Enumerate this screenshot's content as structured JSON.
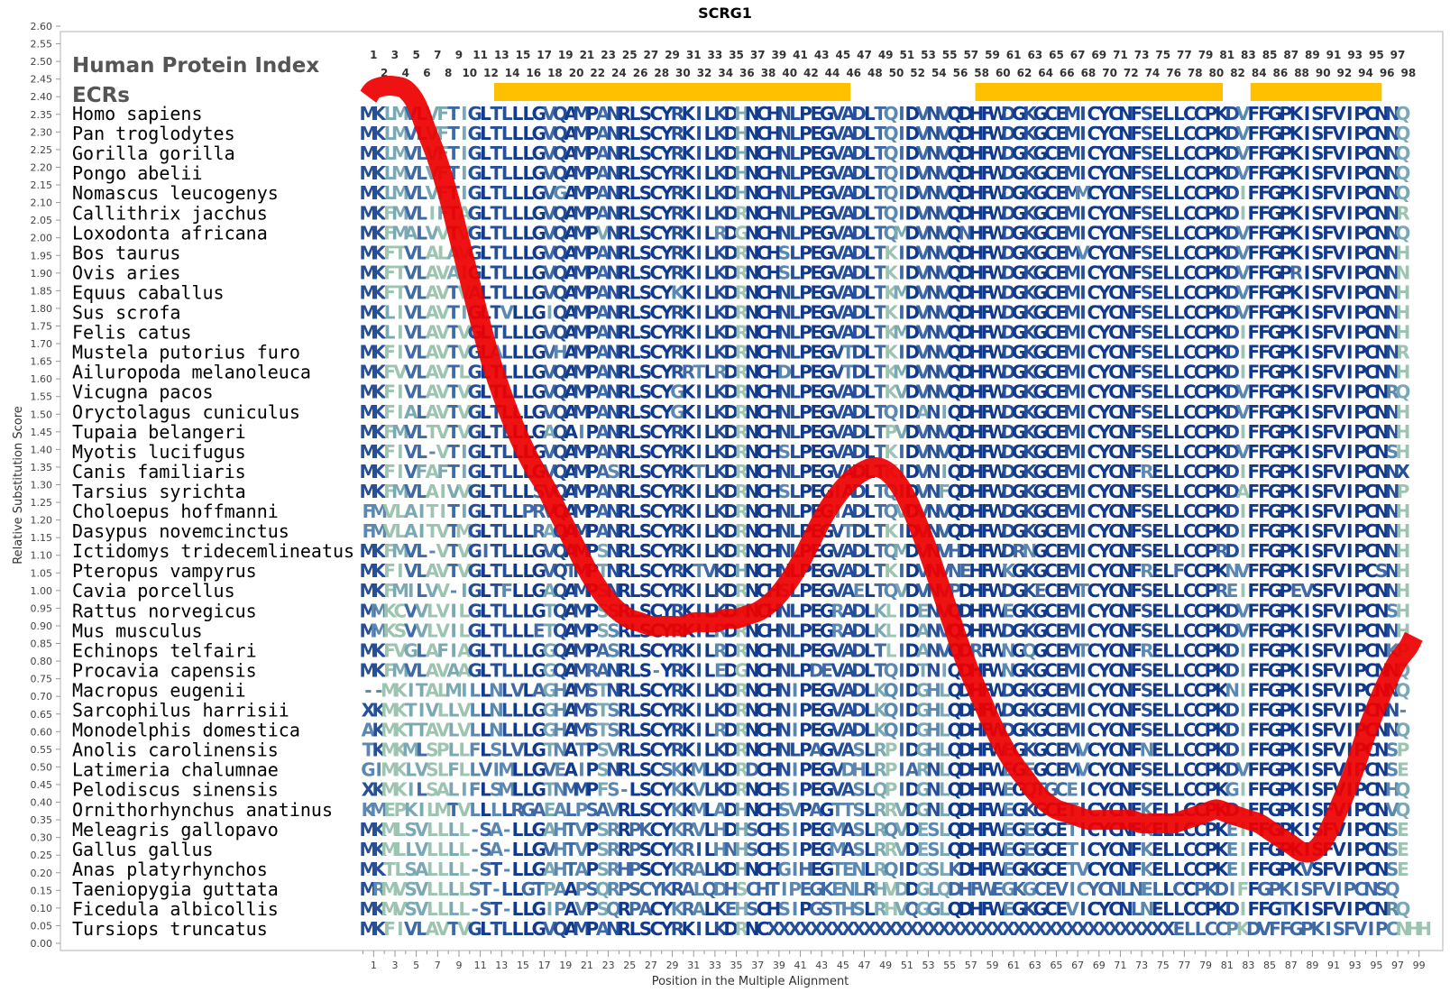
{
  "chart_data": {
    "type": "line",
    "title": "SCRG1",
    "xlabel": "Position in the Multiple Alignment",
    "ylabel": "Relative Substitution Score",
    "ylim": [
      0,
      2.6
    ],
    "xlim": [
      0,
      99
    ],
    "y_ticks": [
      "0.00",
      "0.05",
      "0.10",
      "0.15",
      "0.20",
      "0.25",
      "0.30",
      "0.35",
      "0.40",
      "0.45",
      "0.50",
      "0.55",
      "0.60",
      "0.65",
      "0.70",
      "0.75",
      "0.80",
      "0.85",
      "0.90",
      "0.95",
      "1.00",
      "1.05",
      "1.10",
      "1.15",
      "1.20",
      "1.25",
      "1.30",
      "1.35",
      "1.40",
      "1.45",
      "1.50",
      "1.55",
      "1.60",
      "1.65",
      "1.70",
      "1.75",
      "1.80",
      "1.85",
      "1.90",
      "1.95",
      "2.00",
      "2.05",
      "2.10",
      "2.15",
      "2.20",
      "2.25",
      "2.30",
      "2.35",
      "2.40",
      "2.45",
      "2.50",
      "2.55",
      "2.60"
    ],
    "x_ticks": [
      "1",
      "3",
      "5",
      "7",
      "9",
      "11",
      "13",
      "15",
      "17",
      "19",
      "21",
      "23",
      "25",
      "27",
      "29",
      "31",
      "33",
      "35",
      "37",
      "39",
      "41",
      "43",
      "45",
      "47",
      "49",
      "51",
      "53",
      "55",
      "57",
      "59",
      "61",
      "63",
      "65",
      "67",
      "69",
      "71",
      "73",
      "75",
      "77",
      "79",
      "81",
      "83",
      "85",
      "87",
      "89",
      "91",
      "93",
      "95",
      "97",
      "99"
    ],
    "top_ticks_odd": [
      "1",
      "3",
      "5",
      "7",
      "9",
      "11",
      "13",
      "15",
      "17",
      "19",
      "21",
      "23",
      "25",
      "27",
      "29",
      "31",
      "33",
      "35",
      "37",
      "39",
      "41",
      "43",
      "45",
      "47",
      "49",
      "51",
      "53",
      "55",
      "57",
      "59",
      "61",
      "63",
      "65",
      "67",
      "69",
      "71",
      "73",
      "75",
      "77",
      "79",
      "81",
      "83",
      "85",
      "87",
      "89",
      "91",
      "93",
      "95",
      "97"
    ],
    "top_ticks_even": [
      "2",
      "4",
      "6",
      "8",
      "10",
      "12",
      "14",
      "16",
      "18",
      "20",
      "22",
      "24",
      "26",
      "28",
      "30",
      "32",
      "34",
      "36",
      "38",
      "40",
      "42",
      "44",
      "46",
      "48",
      "50",
      "52",
      "54",
      "56",
      "58",
      "60",
      "62",
      "64",
      "66",
      "68",
      "70",
      "72",
      "74",
      "76",
      "78",
      "80",
      "82",
      "84",
      "86",
      "88",
      "90",
      "92",
      "94",
      "96",
      "98"
    ],
    "header_labels": [
      "Human Protein Index",
      "ECRs"
    ],
    "ecr_regions": [
      [
        12.3,
        45.7
      ],
      [
        57.4,
        80.6
      ],
      [
        83.2,
        95.5
      ]
    ],
    "series": [
      {
        "color": "#ee0000",
        "x": [
          0.5,
          1,
          2,
          3,
          4,
          5,
          6,
          7,
          8,
          9,
          10,
          11,
          12,
          13,
          14,
          15,
          16,
          17,
          18,
          19,
          20,
          21,
          22,
          23,
          24,
          25,
          26,
          27,
          28,
          29,
          30,
          31,
          32,
          33,
          34,
          35,
          36,
          37,
          38,
          39,
          40,
          41,
          42,
          43,
          44,
          45,
          46,
          47,
          48,
          49,
          50,
          51,
          52,
          53,
          54,
          55,
          56,
          57,
          58,
          59,
          60,
          61,
          62,
          63,
          64,
          65,
          66,
          67,
          68,
          69,
          70,
          71,
          72,
          73,
          74,
          75,
          76,
          77,
          78,
          79,
          80,
          81,
          82,
          83,
          84,
          85,
          86,
          87,
          88,
          89,
          90,
          91,
          92,
          93,
          94,
          95,
          96,
          97,
          98,
          98.5
        ],
        "y": [
          2.4,
          2.42,
          2.43,
          2.43,
          2.42,
          2.38,
          2.3,
          2.22,
          2.12,
          2.0,
          1.88,
          1.76,
          1.65,
          1.56,
          1.48,
          1.41,
          1.35,
          1.3,
          1.24,
          1.18,
          1.12,
          1.06,
          1.01,
          0.97,
          0.94,
          0.92,
          0.91,
          0.9,
          0.9,
          0.9,
          0.9,
          0.91,
          0.91,
          0.91,
          0.92,
          0.92,
          0.93,
          0.94,
          0.96,
          0.99,
          1.03,
          1.08,
          1.14,
          1.2,
          1.25,
          1.29,
          1.32,
          1.34,
          1.35,
          1.34,
          1.31,
          1.26,
          1.19,
          1.11,
          1.02,
          0.93,
          0.84,
          0.76,
          0.69,
          0.62,
          0.56,
          0.51,
          0.47,
          0.43,
          0.4,
          0.38,
          0.37,
          0.36,
          0.35,
          0.35,
          0.35,
          0.35,
          0.35,
          0.34,
          0.34,
          0.34,
          0.34,
          0.35,
          0.36,
          0.37,
          0.38,
          0.37,
          0.36,
          0.35,
          0.34,
          0.32,
          0.3,
          0.28,
          0.26,
          0.26,
          0.29,
          0.35,
          0.42,
          0.5,
          0.59,
          0.67,
          0.74,
          0.8,
          0.84,
          0.87
        ]
      }
    ],
    "species": [
      "Homo sapiens",
      "Pan troglodytes",
      "Gorilla gorilla",
      "Pongo abelii",
      "Nomascus leucogenys",
      "Callithrix jacchus",
      "Loxodonta africana",
      "Bos taurus",
      "Ovis aries",
      "Equus caballus",
      "Sus scrofa",
      "Felis catus",
      "Mustela putorius furo",
      "Ailuropoda melanoleuca",
      "Vicugna pacos",
      "Oryctolagus cuniculus",
      "Tupaia belangeri",
      "Myotis lucifugus",
      "Canis familiaris",
      "Tarsius syrichta",
      "Choloepus hoffmanni",
      "Dasypus novemcinctus",
      "Ictidomys tridecemlineatus",
      "Pteropus vampyrus",
      "Cavia porcellus",
      "Rattus norvegicus",
      "Mus musculus",
      "Echinops telfairi",
      "Procavia capensis",
      "Macropus eugenii",
      "Sarcophilus harrisii",
      "Monodelphis domestica",
      "Anolis carolinensis",
      "Latimeria chalumnae",
      "Pelodiscus sinensis",
      "Ornithorhynchus anatinus",
      "Meleagris gallopavo",
      "Gallus gallus",
      "Anas platyrhynchos",
      "Taeniopygia guttata",
      "Ficedula albicollis",
      "Tursiops truncatus"
    ],
    "sequences": [
      "MKLMVLVFTIGLTLLLGVQAMPANRLSCYRKILKDHNCHNLPEGVADLTQIDVNVQDHFWDGKGCEMICYCNFSELLCCPKDVFFGPKISFVIPCNNQ",
      "MKLMVLVFTIGLTLLLGVQAMPANRLSCYRKILKDHNCHNLPEGVADLTQIDVNVQDHFWDGKGCEMICYCNFSELLCCPKDVFFGPKISFVIPCNNQ",
      "MKLMVLVFTIGLTLLLGVQAMPANRLSCYRKILKDHNCHNLPEGVADLTQIDVNVQDHFWDGKGCEMICYCNFSELLCCPKDVFFGPKISFVIPCNNQ",
      "MKLMVLVFTIGLTLLLGVQAMPANRLSCYRKILKDHNCHNLPEGVADLTQIDVNVQDHFWDGKGCEMICYCNFSELLCCPKDVFFGPKISFVIPCNNQ",
      "MKLMVLVFTIGLTLLLGVGAMPANRLSCYRKILKDHNCHNLPEGVADLTQIDVNVQDHFWDGKGCEMMCYCNFSELLCCPKDIFFGPKISFVIPCNNQ",
      "MKFMVLIFTAGLTLLLGVQAMPANRLSCYRKILKDRNCHNLPEGVADLTQIDVNVQDHFWDGKGCEMICYCNFSELLCCPKDIFFGPKISFVIPCNNR",
      "MKFMALVVTVGLTLLLGVQAMPVNRLSCYRKILRDGNCHNLPEGVADLTQMDVNVQNHFWDGKGCEMICYCNFSELLCCPKDVFFGPKISFVIPCNNQ",
      "MKFTVLALAVGLTLLLGVQAMPANRLSCYRKILKDRNCHSLPEGVADLTKIDVNVQDHFWDGKGCEMVCYCNFSELLCCPKDVFFGPKISFVIPCNNH",
      "MKFTVLAVAIGLTLLLGVQAMPANRLSCYRKILKDRNCHSLPEGVADLTKIDVNVQDHFWDGKGCEMICYCNFSELLCCPKDVFFGPRISFVIPCNNN",
      "MKFTVLAVTVALTLLLGVQAMPANRLSCYKKILKDRNCHNLPEGVADLTKMDVNVQDHFWDGKGCEMICYCNFSELLCCPKDVFFGPKISFVIPCNNH",
      "MKLIVLAVTIGLTVLLGIQAMPANRLSCYRKILKDRNCHNLPEGVADLTKIDVNVQDHFWDGKGCEMICYCNFSELLCCPKDVFFGPKISFVIPCNNH",
      "MKLIVLAVTVGLTLLLGVQAMPANRLSCYRKILKDRNCHNLPEGVADLTKMDVNVQDHFWDGKGCEMICYCNFSELLCCPKDIFFGPKISFVIPCNNH",
      "MKFIVLAVTVGLALLLGVHAMPANRLSCYRKILKDRNCHNLPEGVTDLTKIDVNVQDHFWDGKGCEMICYCNFSELLCCPKDIFFGPKISFVIPCNNR",
      "MKFVVLAVTLGLTLLLGVQAMPANRLSCYRRTLRDRNCHDLPEGVTDLTKMDVNVQDHFWDGKGCEMICYCNFSELLCCPKDIFFGPKISFVIPCNNH",
      "MKFIVLAVTVGLTLLLGVQAMPANRLSCYGKILKDRNCHNLPEGVADLTKVDVNVQDHFWDGKGCEMICYCNFSELLCCPKDVFFGPKISFVIPCNRQ",
      "MKFIALAVTVGLTLLLGVQAMPANRLSCYGKILKDRNCHNLPEGVADLTQIDANIQDHFWDGKGCEMICYCNFSELLCCPKDVFFGPKISFVIPCNNH",
      "MKFMVLTVTVGLTLLLGAQAIPANRLSCYRKILKDRNCHNLPEGVADLTPVDVNVQDHFWDGKGCEMICYCNFSELLCCPKDIFFGPKISFVIPCNNH",
      "MKFIVL-VTIGLTLLLGVQAMPANRLSCYRKILKDRNCHSLPEGVADLTKIDVNVQDHFWDGKGCEMICYCNFSELLCCPKDVFFGPKISFVIPCNSH",
      "MKFIVFAFTIGLTLLLGVQAMPASRLSCYRKTLKDRNCHNLPEGVADLTKIDVNIQDHFWDGKGCEMICYCNFRELLCCPKDIFFGPKISFVIPCNNX",
      "MKFMVLAIVVGLTLLLSVQAMPANRLSCYRKILKDRNCHSLPEGIADLTQIDVNFQDHFWDGKGCEMICYCNFSELLCCPKDAFFGPKISFVIPCNNP",
      "FMVLAITITIGLTLLPRVQAMPANRLSCYRKILKDRNCHNLPEGIADLTQVDVNVQDHFWDGKGCEMICYCNFSELLCCPKDIFFGPKISFVIPCNNH",
      "FMVLAITVTMGLTLLLRAQAMPANRLSCYRKILKDRNCHNLPEGVTDLTKIDVNVQDHFWDGKGCEMICYCNFSELLCCPKDIFFGPKISFVIPCNNH",
      "MKFMVL-VTVGITLLLGVQAMPSNRLSCYRKILKDRNCHNLPEGVADLTQMDVNVHDHFWDRNGCEMICYCNFSELLCCPRDIFFGPKISFVIPCNNH",
      "MKFIVLAVTVGLTLLLGVQTMPTNRLSCYRKTVKDHNCHNLPEGVADLTKIDVNVNEHFWKGKGCEMICYCNFRELFCCPKNVFFGPKISFVIPCSNH",
      "MKFMILVV-IGLTFLLGAQAMPSNRLSCYRKILKDRNCHSLPEGVAELTQVDVNVPDHFWDGKECEMTCYCNFSELLCCPREIFFGPEVSFVIPCNNH",
      "MMKCVVLVILGLTLLLGTQAMPSSRLSCYRKILKDRNCHNLPEGRADLKLIDENVQDHFWEGKGCEMICYCNFSELLCCPKDVFFGPKISFVIPCNSH",
      "MMKSVVLVILGLTLLLETQAMPSSRLSCYRKILRDRNCHNLPEGRADLKLIDANVQDHFWDGKGCEMICYCNFSELLCCPKDVFFGPKISFVIPCNNH",
      "MKFVGLAFIAGLTLLLGGQAMPASRLSCYRKILRDRNCHNLPEGVADLTLIDANVQDRFWNGQGCEMTCYCNFRELLCCPKDIFFGPKISFVIPCNKP",
      "MKFMVLAVAAGLTLLLGGQAMRANRLS-YRKILEDGNCHNLPDEVADLTQIDTNIQDHFWNGKGCEMICYCNFSELLCCPKDIFFGPKISFVIPCNNQ",
      "--MKITALMILLNLVLAGHAMSTNRLSCYRKILKDRNCHNIPEGVADLKQIDGHLQDHFWDGKGCEMICYCNFSELLCCPKNIFFGPKISFVIPCNNQ",
      "XKMKTIVLLVLLNLLLGGHAMSTSRLSCYRKILKDRNCHNIPEGVADLKQIDGHLQDHFWDGKGCEMICYCNFSELLCCPKDIFFGPKISFVIPCNN-",
      "AKMKTTAVLVLLNLLLGGHAMSTSRLSCYRKILRDRNCHNIPEGVADLKQIDGHLQDHFWDGKGCEMICYCNFSELLCCPKDIFFGPKISFVIPCNNQ",
      "TKMKMLSPLLFLSLVLGTNATPSVRLSCYRKILKDRNCHNLPAGVASLRPIDGHLQDHFWEGKGCEMVCYCNFNELLCCPKDIFFGPKISFVIPCNSP",
      "GIMKLVSLFLLVIMLLGVEAIPSNRLSCSKKMLKDRDCHNIPEGVDHLRPIARNLQDHFWEGEGCEMVCYCNFSELLCCPKDVFFGPKISFVIPCNSE",
      "XKMKILSALIFLSMLLGTNMMPFS-LSCYKKVLKDRNCHSIPEGVASLQPIDGNLQDHFWEGQTGCEICYCNFSELLCCPKGIFFGPKISFVIPCNHQ",
      "KMEPKILMTVLLLLRGAEALPSAVRLSCYKKMLADHNCHSVPAGTTSLRRVDGNLQDHFWEGKGCETICYCNFKELLCCPKDIFFGPKISFVIPCNVQ",
      "MKMLSVLLLL-SA-LLGAHTVPSRRPKCYKRVLHDHSCHSIPEGMASLRQVDESLQDHFWEGEGCETICYCNFKELLCCPKEIFFGPKISFVIPCNSE",
      "MKMLLVLLLL-SA-LLGVHTVPSRRPSCYKRILHNHSCHSIPEGMASLRRVDESLQDHFWEGEGCETICYCNFKELLCCPKEIFFGPKISFVIPCNSE",
      "MKTLSALLLL-ST-LLGAHTAPSRHPSCYKRALKDHNCHGIHEGTENLRQIDGSLKDHFWEGKGCETVCYCNFKELLCCPKEIFFGPKVSFVIPCNSE",
      "MRMVSVLLLLST-LLGTPAAPSQRPSCYKRALQDHSCHTIPEGKENLRHVDDGLQDHFWEGKGCEVICYCNLNELLCCPKDIFFGPKISFVIPCNSQ",
      "MKMVSVLLLL-ST-LLGIPAVPSQRPACYKRALKEHSCHSIPGSTHSLRHVQGGLQDHFWEGKGCEVICYCNLNELLCCPKDIFFGTKISFVIPCNRQ",
      "MKFIVLAVTVGLTLLLGVQAMPANRLSCYRKILKDRNCXXXXXXXXXXXXXXXXXXXXXXXXXXXXXXXXXXXXXXELLCCPKDVFFGPKISFVIPCNHH"
    ],
    "palette": [
      "#9cc4b0",
      "#7aa9b4",
      "#5b88b0",
      "#3f6aa6",
      "#264f99",
      "#123a8c"
    ]
  }
}
